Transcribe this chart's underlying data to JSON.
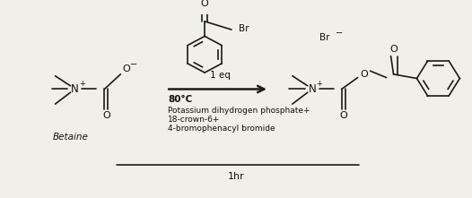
{
  "background_color": "#f0efe8",
  "line_color": "#1a1a1a",
  "text_color": "#111111",
  "reagent_above": "1 eq",
  "reagent_below_1": "80°C",
  "reagent_below_2": "Potassium dihydrogen phosphate+",
  "reagent_below_3": "18-crown-6+",
  "reagent_below_4": "4-bromophenacyl bromide",
  "time_label": "1hr",
  "betaine_label": "Betaine"
}
